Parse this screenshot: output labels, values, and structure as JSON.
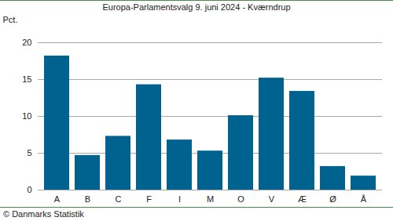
{
  "chart_data": {
    "type": "bar",
    "title": "Europa-Parlamentsvalg 9. juni 2024 - Kværndrup",
    "y_label": "Pct.",
    "caption": "© Danmarks Statistik",
    "categories": [
      "A",
      "B",
      "C",
      "F",
      "I",
      "M",
      "O",
      "V",
      "Æ",
      "Ø",
      "Å"
    ],
    "values": [
      18.2,
      4.7,
      7.3,
      14.3,
      6.8,
      5.3,
      10.1,
      15.2,
      13.4,
      3.2,
      1.9
    ],
    "color": "#00628f",
    "ylim": [
      0,
      20
    ],
    "yticks": [
      0,
      5,
      10,
      15,
      20
    ],
    "grid": true
  }
}
